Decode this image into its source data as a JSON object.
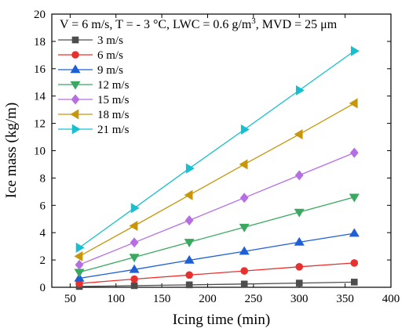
{
  "chart_data": {
    "type": "line",
    "title": "",
    "annotation_parts": [
      "V = 6 m/s, T = - 3 °C, LWC = 0.6 g/m",
      "3",
      ", MVD = 25 μm"
    ],
    "xlabel": "Icing time (min)",
    "ylabel": "Ice mass (kg/m)",
    "xlim": [
      30,
      400
    ],
    "ylim": [
      0,
      20
    ],
    "xticks": [
      50,
      100,
      150,
      200,
      250,
      300,
      350,
      400
    ],
    "yticks": [
      0,
      2,
      4,
      6,
      8,
      10,
      12,
      14,
      16,
      18,
      20
    ],
    "grid": false,
    "legend_position": "top-left",
    "x": [
      60,
      120,
      180,
      240,
      300,
      360
    ],
    "series": [
      {
        "name": "3 m/s",
        "color": "#4d4d4d",
        "marker": "square",
        "values": [
          0.06,
          0.12,
          0.18,
          0.24,
          0.31,
          0.38
        ]
      },
      {
        "name": "6 m/s",
        "color": "#e8312f",
        "marker": "circle",
        "values": [
          0.28,
          0.6,
          0.9,
          1.2,
          1.5,
          1.78
        ]
      },
      {
        "name": "9 m/s",
        "color": "#1f5fd6",
        "marker": "triangle-up",
        "values": [
          0.66,
          1.3,
          1.98,
          2.63,
          3.3,
          3.95
        ]
      },
      {
        "name": "12 m/s",
        "color": "#3aa860",
        "marker": "triangle-down",
        "values": [
          1.1,
          2.2,
          3.3,
          4.4,
          5.5,
          6.6
        ]
      },
      {
        "name": "15 m/s",
        "color": "#b66ee3",
        "marker": "diamond",
        "values": [
          1.65,
          3.28,
          4.9,
          6.55,
          8.2,
          9.85
        ]
      },
      {
        "name": "18 m/s",
        "color": "#c8960a",
        "marker": "triangle-left",
        "values": [
          2.27,
          4.5,
          6.75,
          9.0,
          11.2,
          13.47
        ]
      },
      {
        "name": "21 m/s",
        "color": "#17bfd0",
        "marker": "triangle-right",
        "values": [
          2.9,
          5.8,
          8.7,
          11.55,
          14.42,
          17.3
        ]
      }
    ]
  }
}
